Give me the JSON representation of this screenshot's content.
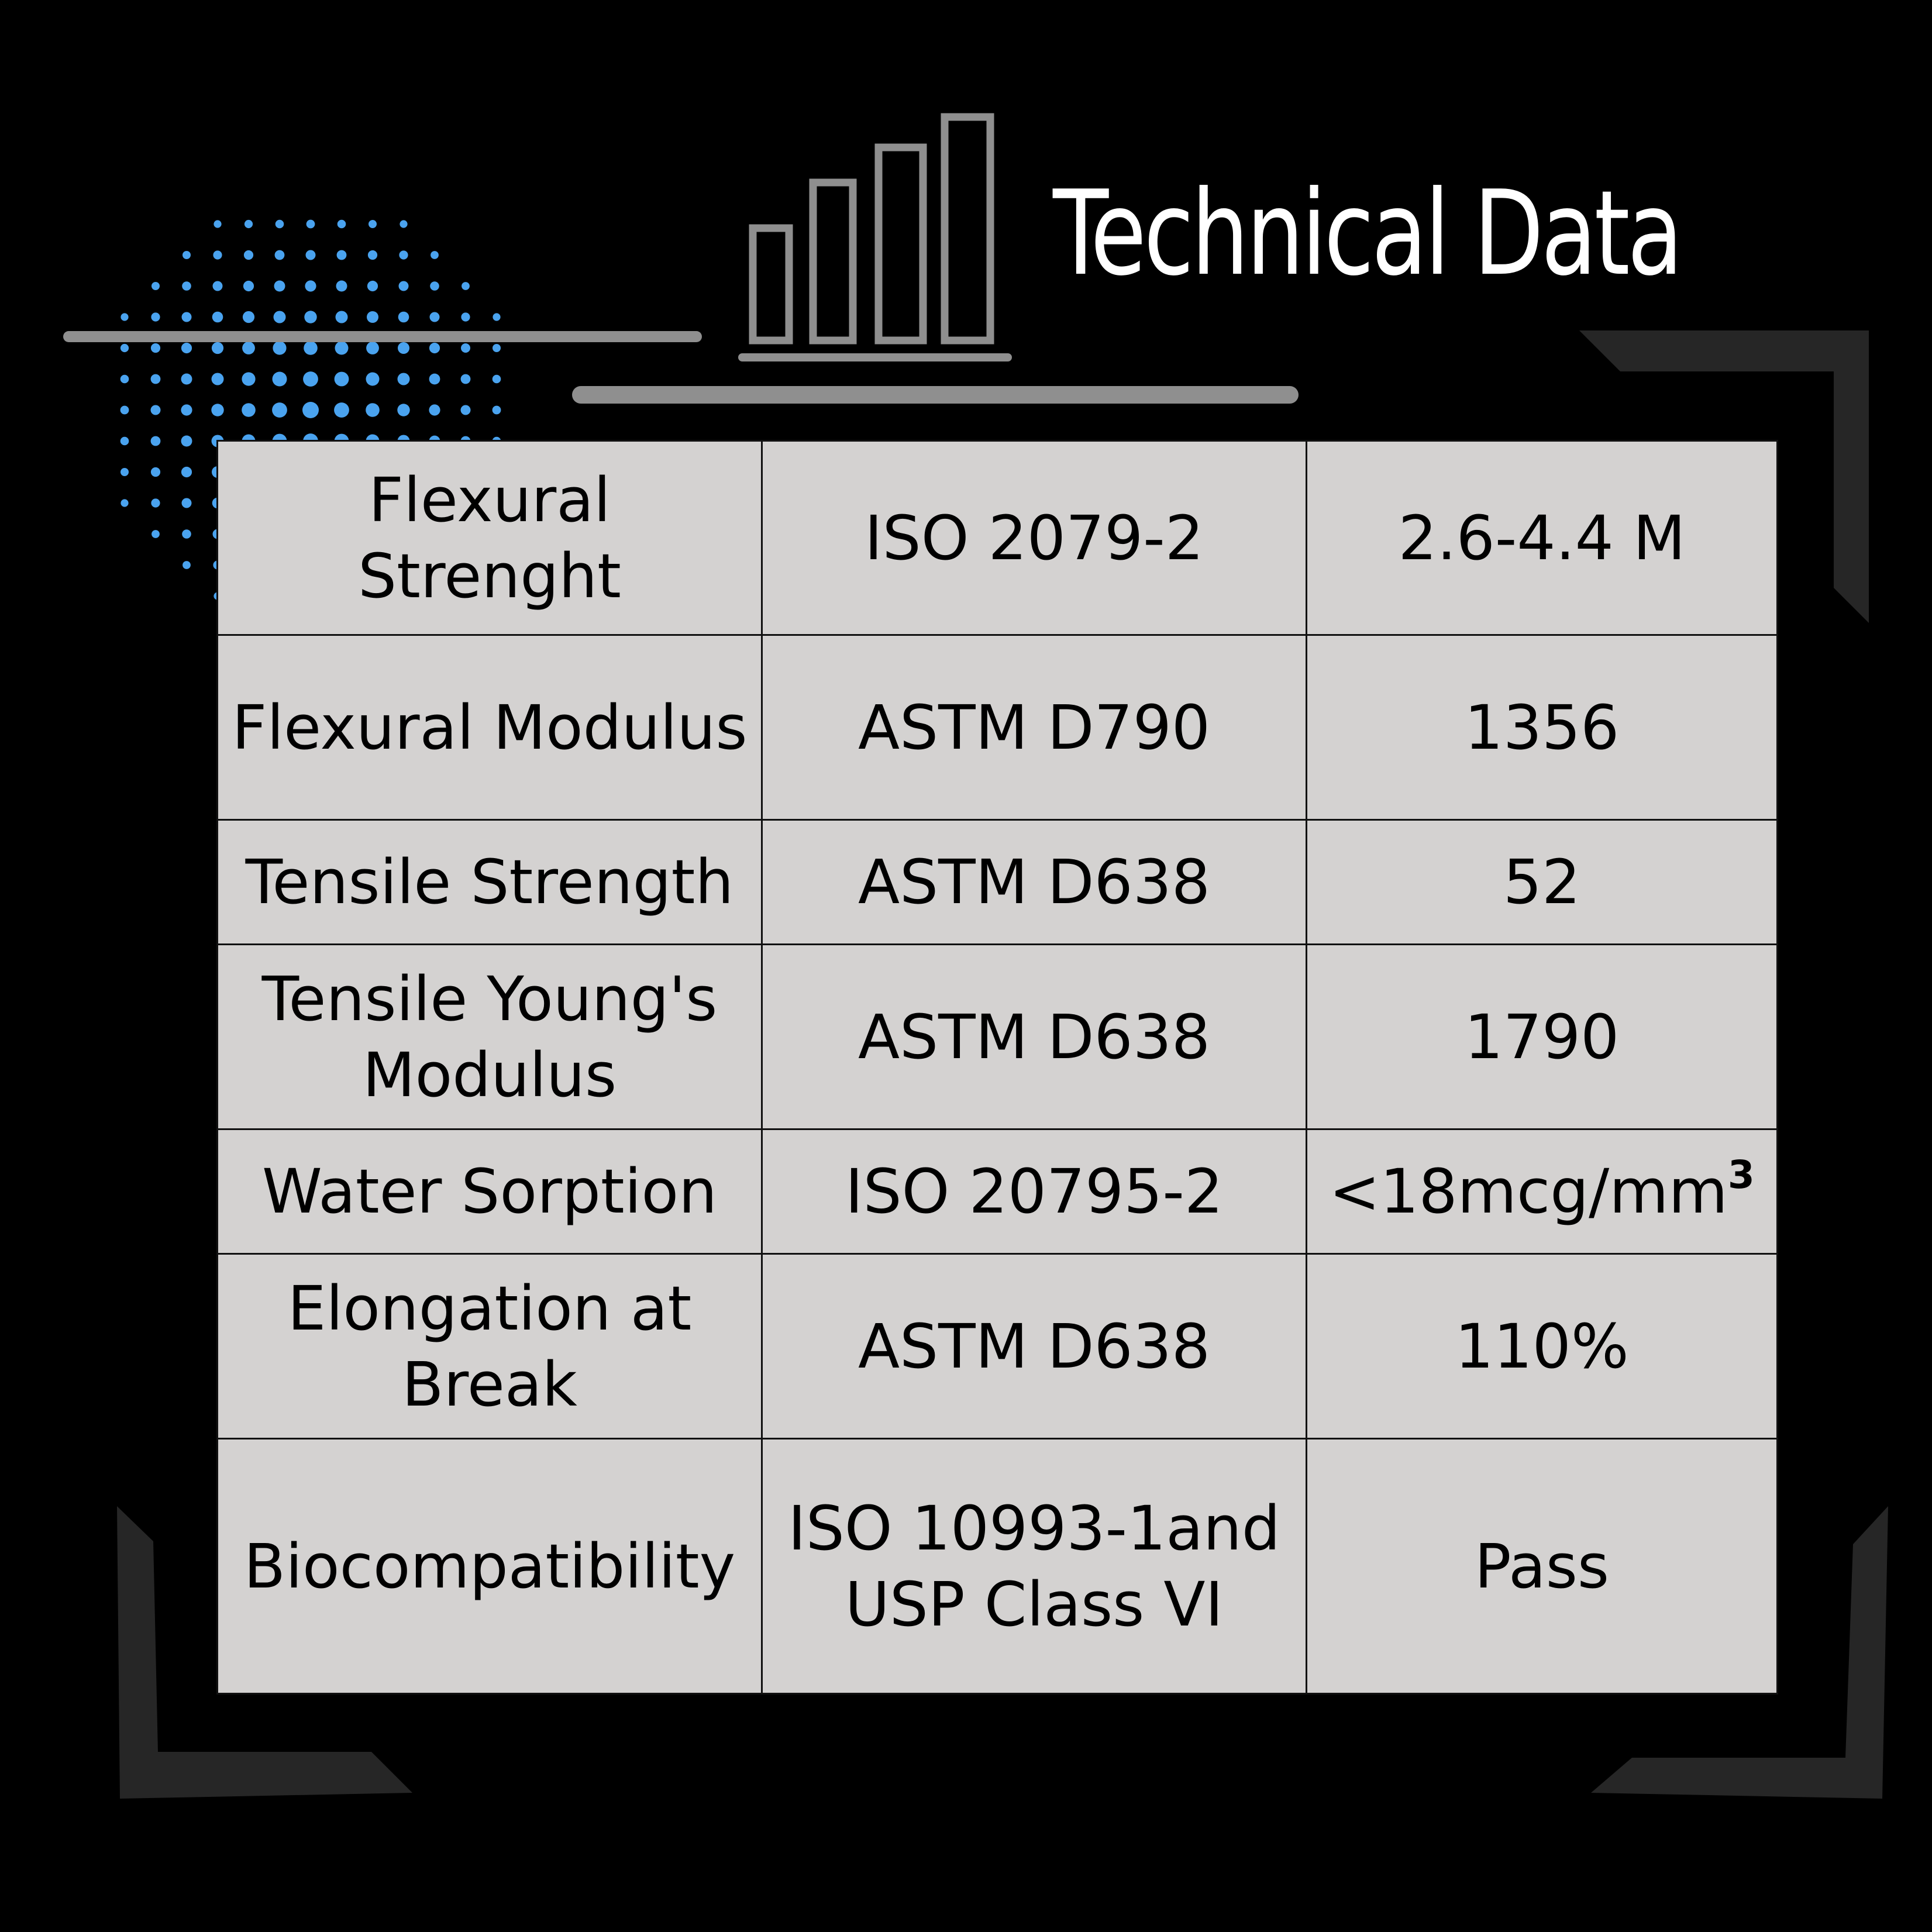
{
  "header": {
    "title": "Technical Data",
    "icon": "bar-chart-icon"
  },
  "colors": {
    "background": "#000000",
    "dot_accent": "#4aa3ef",
    "frame_gray": "#262626",
    "line_gray": "#8f8f8f",
    "table_cell": "#d4d2d1"
  },
  "table": {
    "rows": [
      {
        "property": "Flexural Strenght",
        "standard": "ISO 2079-2",
        "value": "2.6-4.4 M"
      },
      {
        "property": "Flexural Modulus",
        "standard": "ASTM D790",
        "value": "1356"
      },
      {
        "property": "Tensile Strength",
        "standard": "ASTM D638",
        "value": "52"
      },
      {
        "property": "Tensile Young's Modulus",
        "standard": "ASTM D638",
        "value": "1790"
      },
      {
        "property": "Water Sorption",
        "standard": "ISO 20795-2",
        "value": "<18mcg/mm",
        "value_sup": "3"
      },
      {
        "property": "Elongation at Break",
        "standard": "ASTM D638",
        "value": "110%"
      },
      {
        "property": "Biocompatibility",
        "standard": "ISO 10993-1and USP Class VI",
        "value": "Pass"
      }
    ]
  }
}
